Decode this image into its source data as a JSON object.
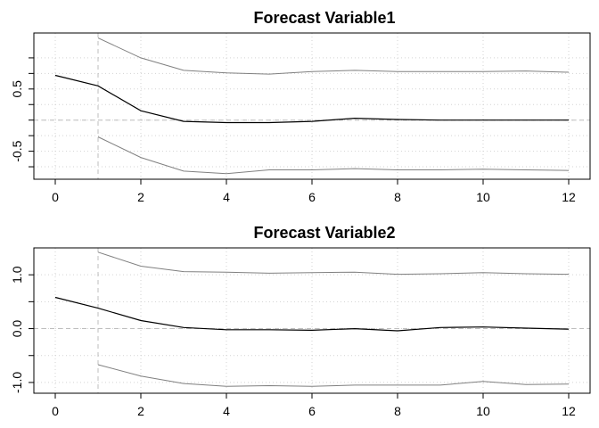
{
  "chart_data": [
    {
      "type": "line",
      "title": "Forecast Variable1",
      "xlabel": "",
      "ylabel": "",
      "grid": true,
      "xlim": [
        -0.5,
        12.5
      ],
      "ylim": [
        -0.95,
        1.4
      ],
      "x_ticks": [
        0,
        2,
        4,
        6,
        8,
        10,
        12
      ],
      "x_tick_labels": [
        "0",
        "2",
        "4",
        "6",
        "8",
        "10",
        "12"
      ],
      "y_ticks": [
        -0.75,
        -0.5,
        -0.25,
        0,
        0.25,
        0.5,
        0.75,
        1.0
      ],
      "y_tick_labels": [
        "-0.5",
        "0.5"
      ],
      "y_tick_label_values": [
        -0.5,
        0.5
      ],
      "reference_lines": {
        "h": 0,
        "v": 1
      },
      "series": [
        {
          "role": "forecast",
          "color": "#000000",
          "x": [
            0,
            1,
            2,
            3,
            4,
            5,
            6,
            7,
            8,
            9,
            10,
            11,
            12
          ],
          "values": [
            0.72,
            0.55,
            0.15,
            -0.02,
            -0.04,
            -0.04,
            -0.02,
            0.03,
            0.01,
            0.0,
            0.0,
            0.0,
            0.0
          ]
        },
        {
          "role": "upper",
          "color": "#808080",
          "x": [
            1,
            2,
            3,
            4,
            5,
            6,
            7,
            8,
            9,
            10,
            11,
            12
          ],
          "values": [
            1.32,
            1.0,
            0.8,
            0.76,
            0.74,
            0.78,
            0.8,
            0.78,
            0.78,
            0.78,
            0.79,
            0.77
          ]
        },
        {
          "role": "lower",
          "color": "#808080",
          "x": [
            1,
            2,
            3,
            4,
            5,
            6,
            7,
            8,
            9,
            10,
            11,
            12
          ],
          "values": [
            -0.27,
            -0.6,
            -0.82,
            -0.86,
            -0.8,
            -0.8,
            -0.78,
            -0.8,
            -0.8,
            -0.79,
            -0.8,
            -0.81
          ]
        }
      ]
    },
    {
      "type": "line",
      "title": "Forecast Variable2",
      "xlabel": "",
      "ylabel": "",
      "grid": true,
      "xlim": [
        -0.5,
        12.5
      ],
      "ylim": [
        -1.2,
        1.5
      ],
      "x_ticks": [
        0,
        2,
        4,
        6,
        8,
        10,
        12
      ],
      "x_tick_labels": [
        "0",
        "2",
        "4",
        "6",
        "8",
        "10",
        "12"
      ],
      "y_ticks": [
        -1.0,
        -0.5,
        0,
        0.5,
        1.0
      ],
      "y_tick_labels": [
        "-1.0",
        "0.0",
        "1.0"
      ],
      "y_tick_label_values": [
        -1.0,
        0.0,
        1.0
      ],
      "reference_lines": {
        "h": 0,
        "v": 1
      },
      "series": [
        {
          "role": "forecast",
          "color": "#000000",
          "x": [
            0,
            1,
            2,
            3,
            4,
            5,
            6,
            7,
            8,
            9,
            10,
            11,
            12
          ],
          "values": [
            0.58,
            0.38,
            0.15,
            0.02,
            -0.02,
            -0.02,
            -0.03,
            0.0,
            -0.04,
            0.02,
            0.03,
            0.01,
            -0.01
          ]
        },
        {
          "role": "upper",
          "color": "#808080",
          "x": [
            1,
            2,
            3,
            4,
            5,
            6,
            7,
            8,
            9,
            10,
            11,
            12
          ],
          "values": [
            1.42,
            1.16,
            1.06,
            1.05,
            1.03,
            1.04,
            1.05,
            1.01,
            1.02,
            1.04,
            1.02,
            1.01
          ]
        },
        {
          "role": "lower",
          "color": "#808080",
          "x": [
            1,
            2,
            3,
            4,
            5,
            6,
            7,
            8,
            9,
            10,
            11,
            12
          ],
          "values": [
            -0.67,
            -0.88,
            -1.02,
            -1.07,
            -1.06,
            -1.07,
            -1.05,
            -1.05,
            -1.05,
            -0.98,
            -1.04,
            -1.03
          ]
        }
      ]
    }
  ]
}
